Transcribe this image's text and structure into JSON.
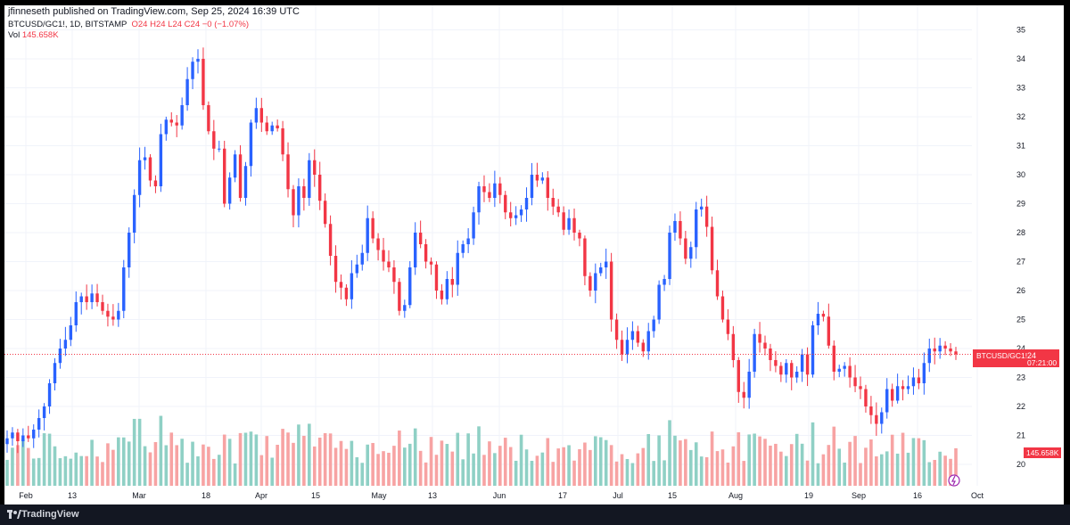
{
  "header": {
    "published": "jfinneseth published on TradingView.com, Sep 25, 2024 16:39 UTC",
    "symbol": "BTCUSD/GC1!, 1D, BITSTAMP",
    "ohlc": {
      "o": "O24",
      "h": "H24",
      "l": "L24",
      "c": "C24",
      "chg": "−0 (−1.07%)"
    },
    "vol_label": "Vol",
    "vol_value": "145.658K"
  },
  "price_label": {
    "symbol": "BTCUSD/GC1!",
    "price": "24",
    "countdown": "07:21:00"
  },
  "volume_label": "145.658K",
  "footer": {
    "brand": "TradingView"
  },
  "colors": {
    "up": "#2962ff",
    "down": "#f23645",
    "vol_up": "#8fd0c5",
    "vol_down": "#f7a3a3",
    "last_line": "#f23645"
  },
  "chart_data": {
    "type": "candlestick",
    "y_axis": {
      "ticks": [
        20,
        21,
        22,
        23,
        24,
        25,
        26,
        27,
        28,
        29,
        30,
        31,
        32,
        33,
        34,
        35
      ],
      "range": [
        19.5,
        35.2
      ]
    },
    "x_axis": {
      "labels": [
        "Feb",
        "13",
        "Mar",
        "18",
        "Apr",
        "15",
        "May",
        "13",
        "Jun",
        "17",
        "Jul",
        "15",
        "Aug",
        "19",
        "Sep",
        "16",
        "Oct"
      ]
    },
    "last_price": 23.8,
    "closes": [
      20.9,
      21.1,
      20.8,
      21.0,
      20.9,
      21.2,
      21.6,
      22.0,
      22.8,
      23.5,
      24.0,
      24.3,
      24.8,
      25.6,
      25.8,
      25.6,
      25.9,
      25.6,
      25.3,
      25.1,
      25.0,
      25.3,
      26.8,
      28.0,
      29.3,
      30.5,
      30.6,
      29.8,
      29.6,
      31.4,
      31.9,
      31.8,
      31.7,
      32.4,
      33.3,
      33.9,
      34.0,
      32.4,
      31.5,
      30.9,
      30.9,
      29.0,
      29.9,
      30.7,
      29.2,
      30.3,
      31.8,
      32.3,
      31.8,
      31.5,
      31.7,
      31.6,
      30.7,
      29.5,
      28.6,
      29.6,
      29.2,
      30.5,
      30.0,
      29.1,
      28.3,
      27.2,
      26.3,
      26.1,
      25.7,
      26.6,
      26.9,
      27.3,
      28.5,
      27.8,
      27.4,
      27.0,
      26.8,
      26.3,
      25.3,
      25.5,
      26.8,
      28.0,
      27.6,
      27.0,
      26.9,
      26.0,
      25.7,
      26.4,
      26.2,
      27.3,
      27.6,
      27.8,
      28.7,
      29.6,
      29.4,
      29.2,
      29.7,
      29.3,
      28.7,
      28.5,
      28.6,
      28.8,
      29.2,
      30.0,
      29.8,
      29.9,
      29.2,
      28.9,
      28.7,
      28.1,
      28.5,
      28.0,
      27.8,
      26.5,
      26.0,
      26.6,
      26.8,
      27.0,
      25.0,
      24.3,
      23.8,
      24.3,
      24.6,
      24.2,
      23.9,
      24.6,
      25.0,
      26.2,
      26.4,
      28.0,
      28.4,
      27.8,
      27.1,
      27.5,
      28.8,
      28.9,
      28.2,
      26.7,
      25.8,
      25.0,
      24.5,
      23.6,
      22.5,
      22.3,
      23.2,
      24.5,
      24.2,
      24.0,
      23.6,
      23.4,
      23.1,
      23.5,
      23.0,
      23.2,
      23.8,
      23.1,
      24.8,
      25.2,
      25.1,
      24.1,
      23.2,
      23.3,
      23.4,
      23.0,
      22.7,
      22.6,
      22.0,
      21.7,
      21.4,
      21.8,
      22.6,
      22.2,
      22.7,
      22.6,
      22.7,
      23.0,
      22.8,
      23.5,
      24.0,
      23.9,
      24.1,
      24.0,
      23.9,
      23.8
    ]
  }
}
